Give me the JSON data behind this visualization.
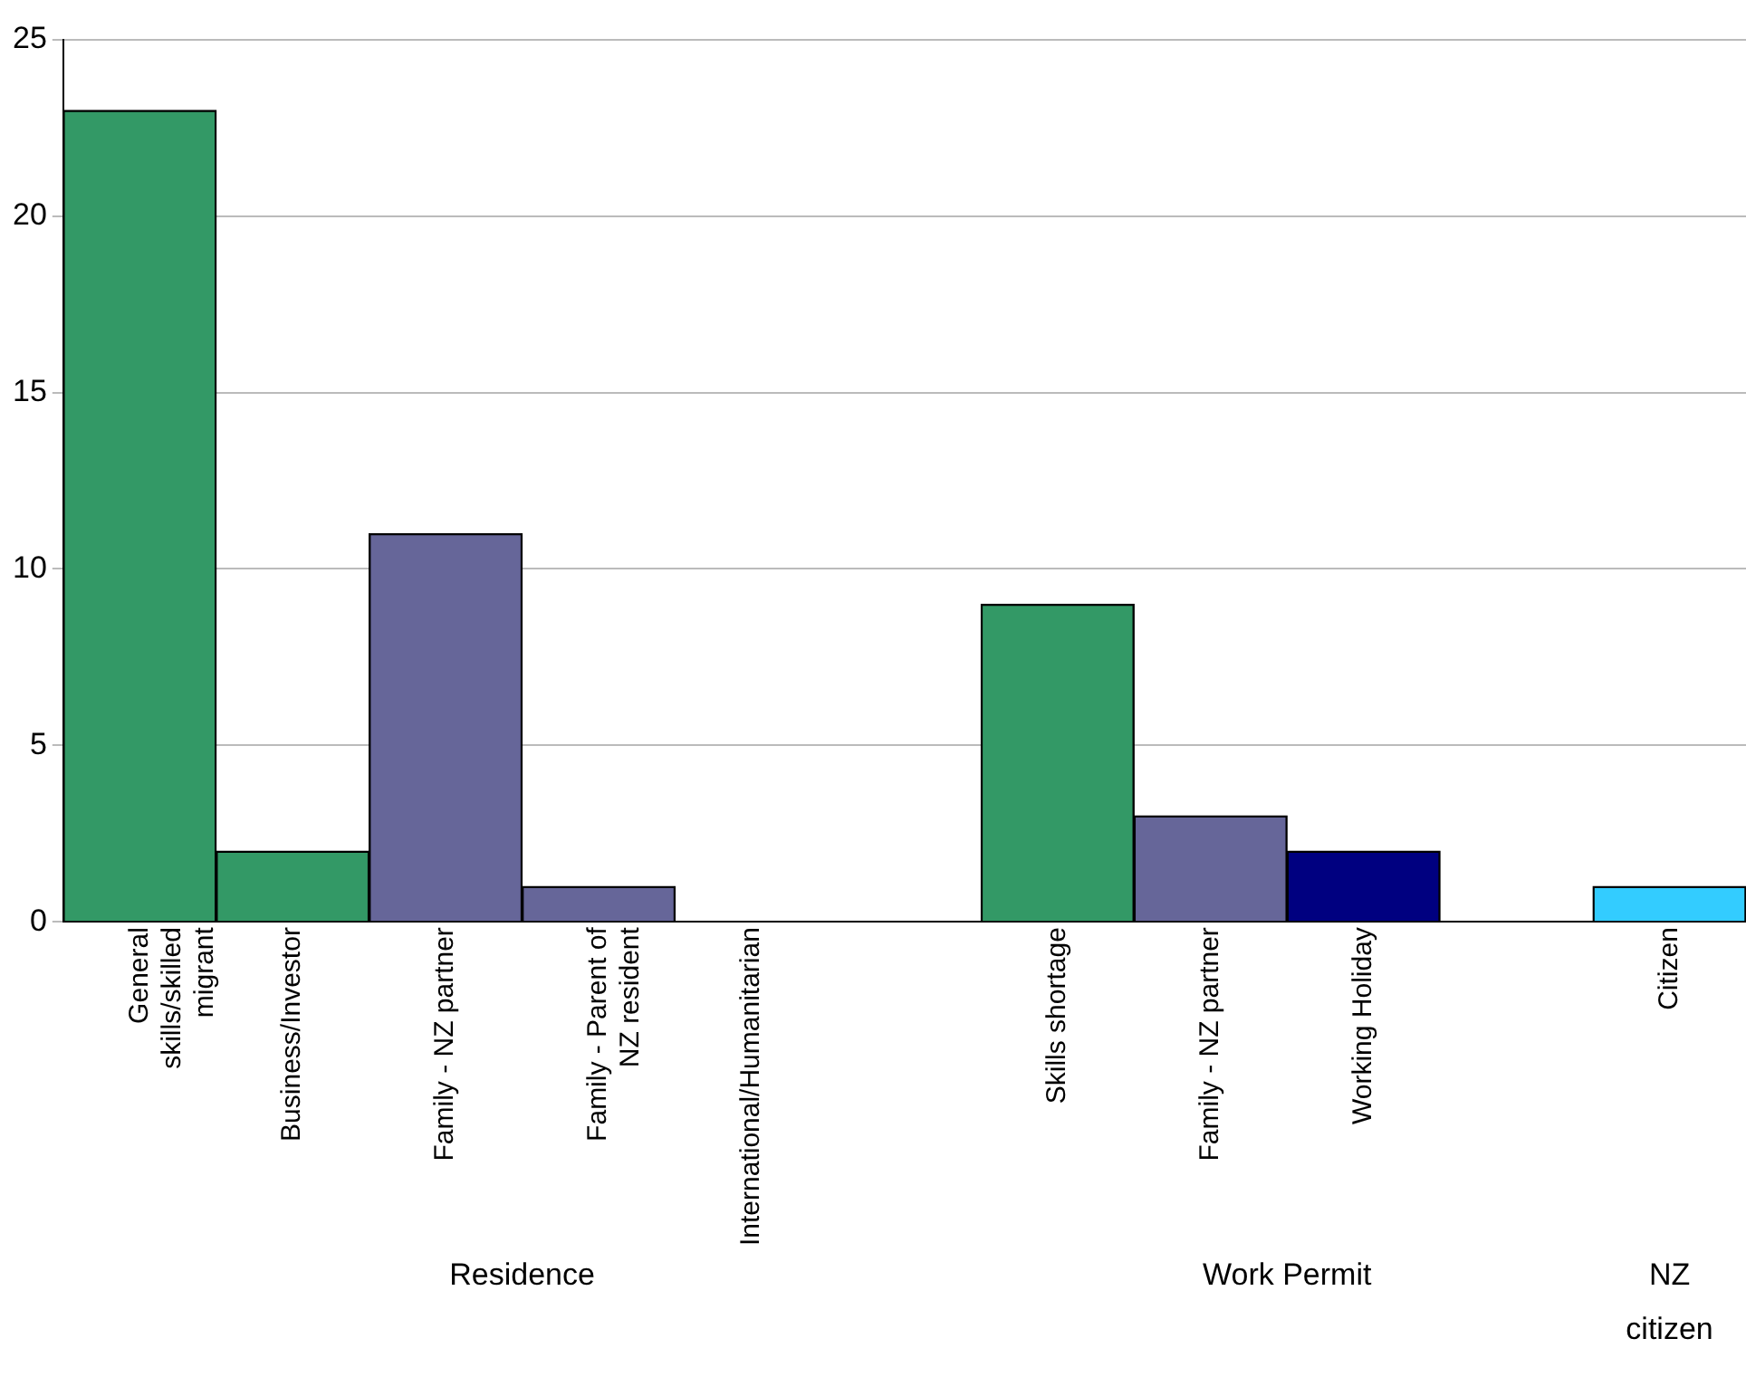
{
  "chart_data": {
    "type": "bar",
    "categories": [
      "General skills/skilled migrant",
      "Business/Investor",
      "Family - NZ partner",
      "Family - Parent of NZ resident",
      "International/Humanitarian",
      null,
      "Skills shortage",
      "Family - NZ partner",
      "Working Holiday",
      null,
      "Citizen"
    ],
    "values": [
      23,
      2,
      11,
      1,
      0,
      null,
      9,
      3,
      2,
      null,
      1
    ],
    "colors": [
      "#339966",
      "#339966",
      "#666699",
      "#666699",
      "#666699",
      "#666699",
      "#339966",
      "#666699",
      "#000080",
      "#33ccff",
      "#33ccff"
    ],
    "ylim": [
      0,
      25
    ],
    "yticks": [
      0,
      5,
      10,
      15,
      20,
      25
    ],
    "grid": "y",
    "legend": false,
    "annotations": [
      "Residence",
      "Work Permit",
      "NZ citizen"
    ]
  }
}
